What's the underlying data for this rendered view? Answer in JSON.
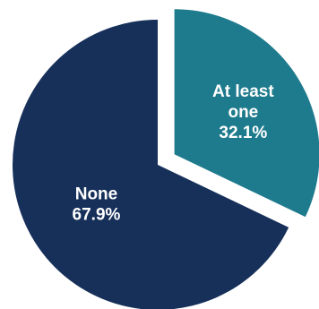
{
  "chart_data": {
    "type": "pie",
    "slices": [
      {
        "label": "At least one",
        "label_lines": [
          "At least",
          "one"
        ],
        "value": 32.1,
        "value_text": "32.1%",
        "color": "#1e7b8d",
        "exploded": true
      },
      {
        "label": "None",
        "label_lines": [
          "None"
        ],
        "value": 67.9,
        "value_text": "67.9%",
        "color": "#17305a",
        "exploded": false
      }
    ],
    "title": "",
    "legend": "none"
  }
}
